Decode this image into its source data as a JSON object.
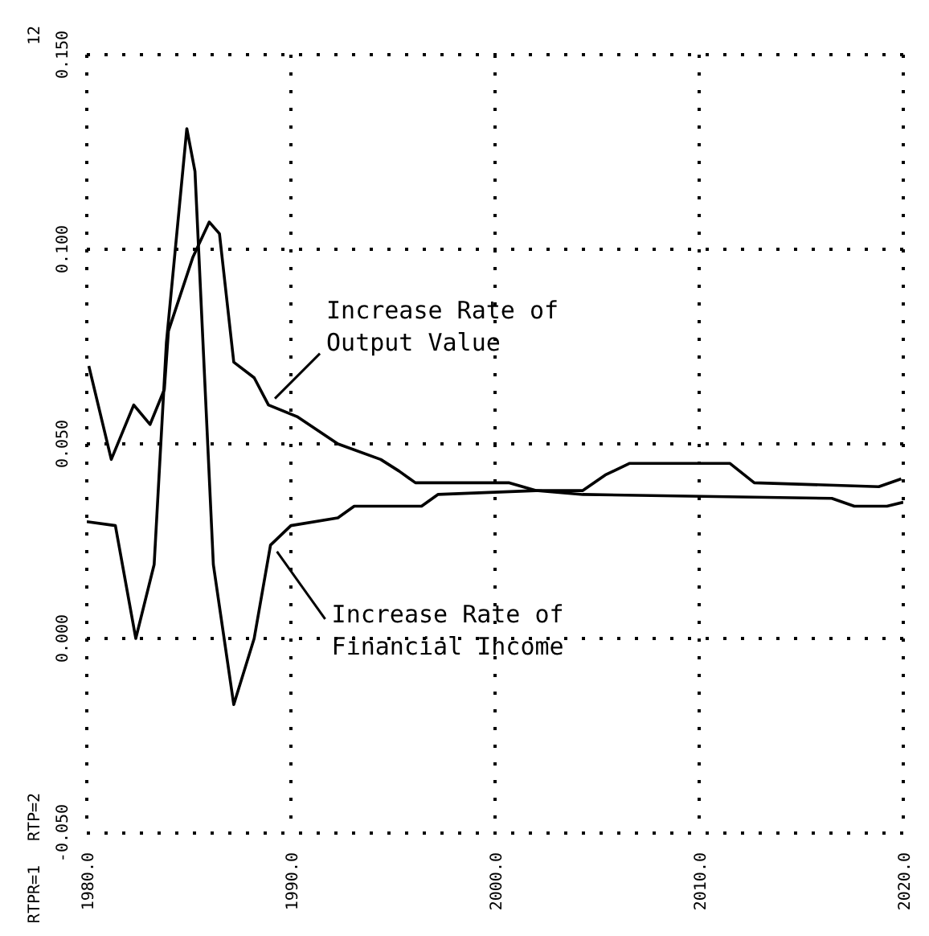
{
  "chart_data": {
    "type": "line",
    "grid": true,
    "marker": "none",
    "line_style": "solid",
    "xlim": [
      1980,
      2020
    ],
    "ylim": [
      -0.05,
      0.15
    ],
    "xticks": [
      {
        "value": 1980,
        "label": "1980.0"
      },
      {
        "value": 1990,
        "label": "1990.0"
      },
      {
        "value": 2000,
        "label": "2000.0"
      },
      {
        "value": 2010,
        "label": "2010.0"
      },
      {
        "value": 2020,
        "label": "2020.0"
      }
    ],
    "yticks": [
      {
        "value": -0.05,
        "label": "-0.050"
      },
      {
        "value": 0,
        "label": "0.000"
      },
      {
        "value": 0.05,
        "label": "0.050"
      },
      {
        "value": 0.1,
        "label": "0.100"
      },
      {
        "value": 0.15,
        "label": "0.150"
      }
    ],
    "annotations": [
      "12",
      "RTPR=1",
      "RTP=2"
    ],
    "series": [
      {
        "name": "Increase Rate of Output Value",
        "color": "#000000",
        "x": [
          1980.1,
          1981.2,
          1982.3,
          1983.1,
          1983.8,
          1984.0,
          1985.2,
          1986.0,
          1986.5,
          1987.2,
          1988.2,
          1988.9,
          1990.3,
          1992.3,
          1994.4,
          1995.3,
          1996.1,
          2000.7,
          2002.0,
          2004.3,
          2005.4,
          2006.6,
          2011.5,
          2012.7,
          2018.8,
          2019.9
        ],
        "values": [
          0.07,
          0.046,
          0.06,
          0.055,
          0.064,
          0.079,
          0.098,
          0.107,
          0.104,
          0.071,
          0.067,
          0.06,
          0.057,
          0.05,
          0.046,
          0.043,
          0.04,
          0.04,
          0.038,
          0.038,
          0.042,
          0.045,
          0.045,
          0.04,
          0.039,
          0.041
        ]
      },
      {
        "name": "Increase Rate of Financial Income",
        "color": "#000000",
        "x": [
          1980.0,
          1981.4,
          1982.4,
          1983.3,
          1983.9,
          1984.9,
          1985.3,
          1986.2,
          1987.2,
          1988.2,
          1989.0,
          1990.0,
          1992.3,
          1993.1,
          1996.4,
          1997.2,
          2002.0,
          2004.3,
          2016.5,
          2017.6,
          2019.2,
          2020.0
        ],
        "values": [
          0.03,
          0.029,
          0.0,
          0.019,
          0.076,
          0.131,
          0.12,
          0.019,
          -0.017,
          0.0,
          0.024,
          0.029,
          0.031,
          0.034,
          0.034,
          0.037,
          0.038,
          0.037,
          0.036,
          0.034,
          0.034,
          0.035
        ]
      }
    ]
  }
}
